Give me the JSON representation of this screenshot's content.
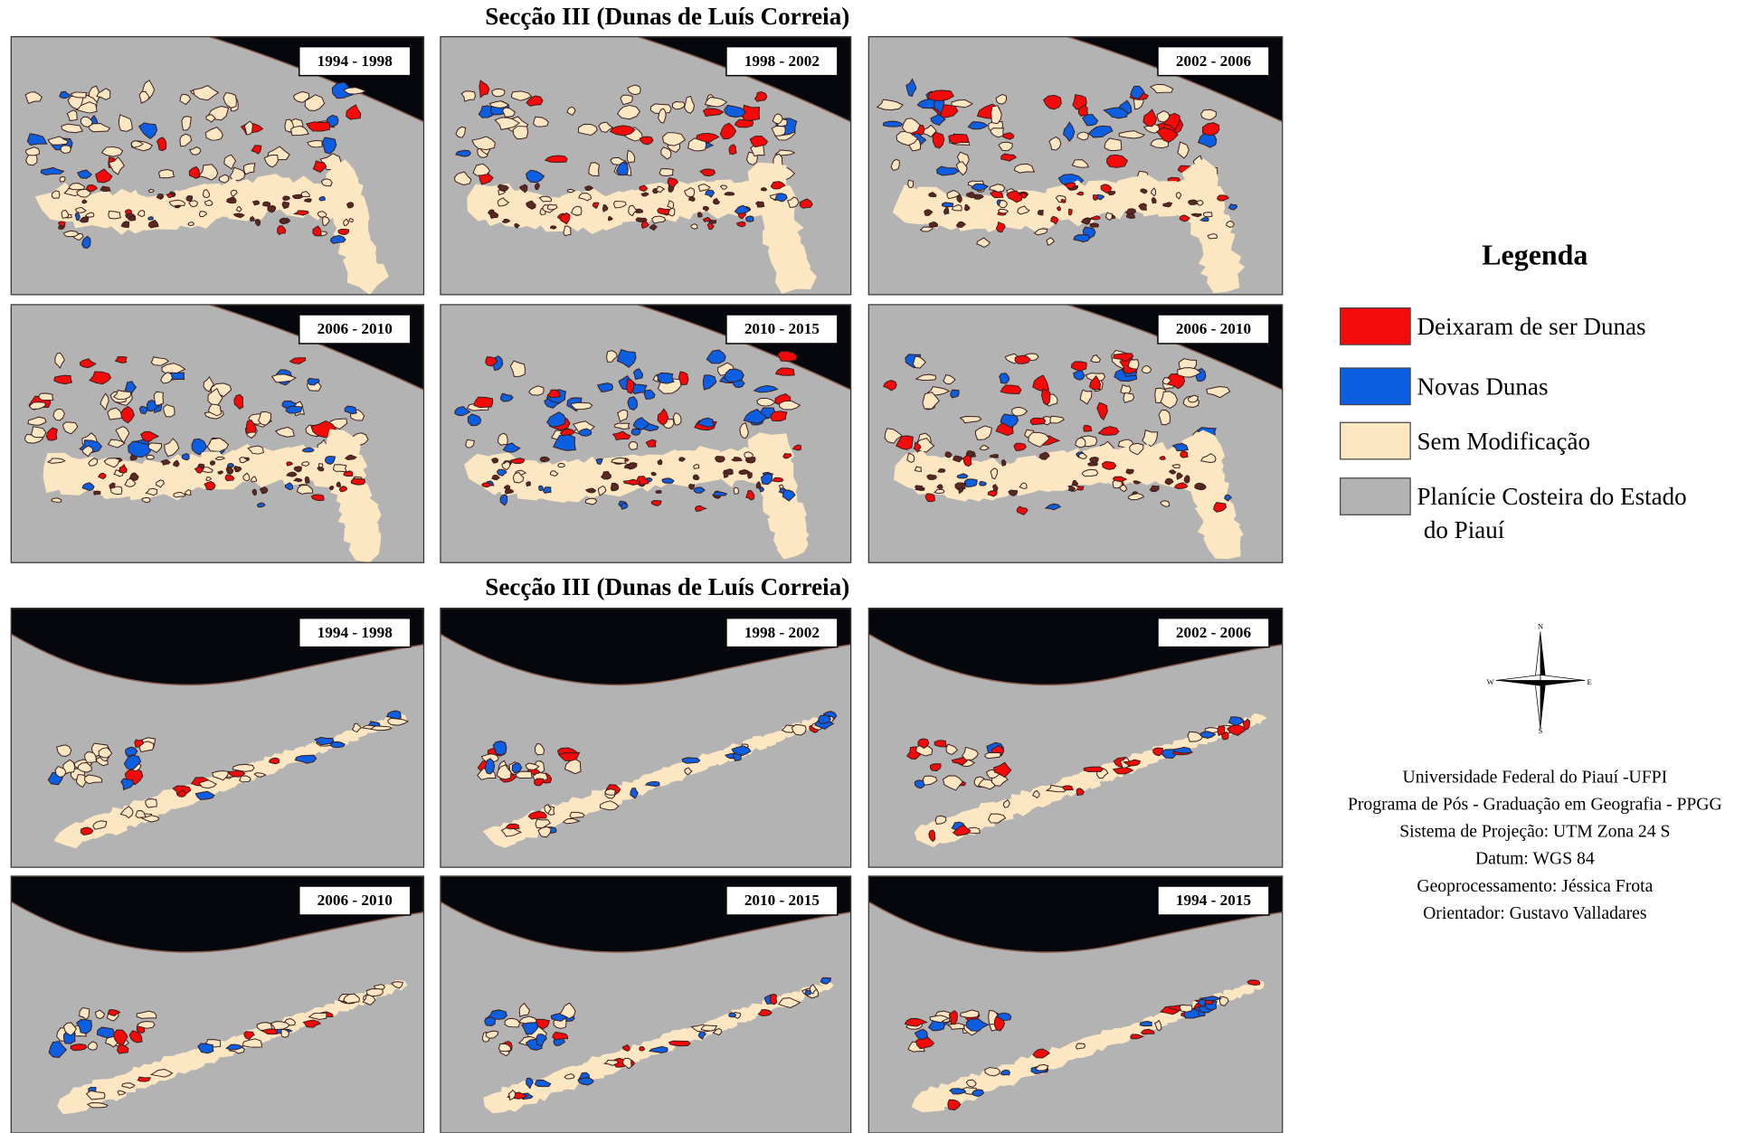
{
  "sections": [
    {
      "title": "Secção III (Dunas de Luís Correia)",
      "panels": [
        "1994 - 1998",
        "1998 - 2002",
        "2002 - 2006",
        "2006 - 2010",
        "2010 - 2015",
        "2006 - 2010"
      ]
    },
    {
      "title": "Secção III (Dunas de Luís Correia)",
      "panels": [
        "1994 - 1998",
        "1998 - 2002",
        "2002 - 2006",
        "2006 - 2010",
        "2010 - 2015",
        "1994 - 2015"
      ]
    }
  ],
  "legend": {
    "title": "Legenda",
    "items": [
      {
        "label": "Deixaram de ser Dunas",
        "color": "#f50a0a"
      },
      {
        "label": "Novas Dunas",
        "color": "#0b5fe0"
      },
      {
        "label": "Sem Modificação",
        "color": "#fde7c3"
      },
      {
        "label": "Planície Costeira do Estado\ndo Piauí",
        "color": "#b3b3b3"
      }
    ]
  },
  "compass": {
    "n": "N",
    "e": "E",
    "s": "S",
    "w": "W"
  },
  "credits": [
    "Universidade Federal do Piauí -UFPI",
    "Programa de Pós - Graduação em Geografia - PPGG",
    "Sistema de Projeção: UTM Zona 24 S",
    "Datum: WGS 84",
    "Geoprocessamento: Jéssica Frota",
    "Orientador: Gustavo Valladares"
  ]
}
